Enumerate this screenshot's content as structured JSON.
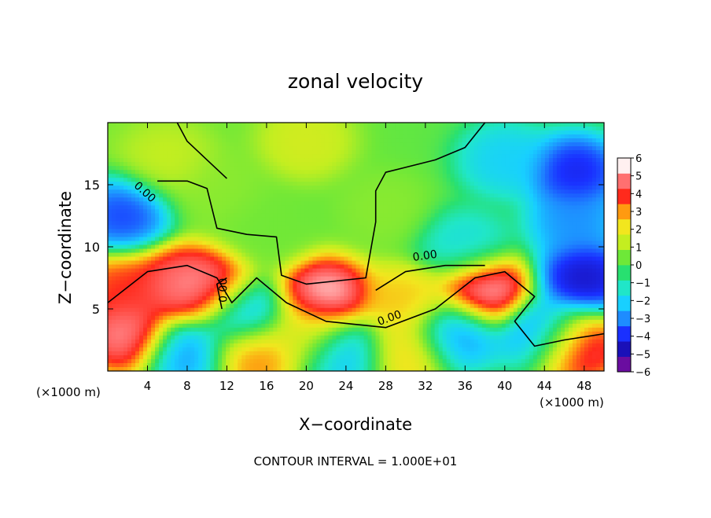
{
  "chart_data": {
    "type": "heatmap",
    "title": "zonal velocity",
    "xlabel": "X−coordinate",
    "ylabel": "Z−coordinate",
    "x_unit_label_left": "(×1000 m)",
    "x_unit_label_right": "(×1000 m)",
    "xlim": [
      0,
      50
    ],
    "ylim": [
      0,
      20
    ],
    "x_ticks": [
      4,
      8,
      12,
      16,
      20,
      24,
      28,
      32,
      36,
      40,
      44,
      48
    ],
    "y_ticks": [
      5,
      10,
      15
    ],
    "colorbar": {
      "range": [
        -6,
        6
      ],
      "ticks": [
        6,
        5,
        4,
        3,
        2,
        1,
        0,
        -1,
        -2,
        -3,
        -4,
        -5,
        -6
      ],
      "colors": [
        "#6a0da0",
        "#1a10b8",
        "#1a30ff",
        "#1e8cff",
        "#18d0ff",
        "#20e6c8",
        "#28e070",
        "#6ee838",
        "#c4ee20",
        "#f2e61e",
        "#ff9a10",
        "#ff2a1c",
        "#ff7070",
        "#fff0f0"
      ]
    },
    "contour_label": "0.00",
    "footer": "CONTOUR INTERVAL = 1.000E+01",
    "features": [
      {
        "x": 6,
        "z": 17,
        "u": 1.5
      },
      {
        "x": 20,
        "z": 18.5,
        "u": 1.8
      },
      {
        "x": 11,
        "z": 14.5,
        "u": 0.8
      },
      {
        "x": 16,
        "z": 11.5,
        "u": 0.5
      },
      {
        "x": 28,
        "z": 13,
        "u": 0.8
      },
      {
        "x": 40,
        "z": 17,
        "u": -2.5
      },
      {
        "x": 47,
        "z": 12,
        "u": -3.5
      },
      {
        "x": 1.5,
        "z": 12.5,
        "u": -4.5
      },
      {
        "x": 1.5,
        "z": 6.5,
        "u": 4.5
      },
      {
        "x": 7,
        "z": 7,
        "u": 5.5
      },
      {
        "x": 10,
        "z": 6.5,
        "u": 6
      },
      {
        "x": 13.5,
        "z": 4.5,
        "u": -3.5
      },
      {
        "x": 22,
        "z": 6,
        "u": 6.5
      },
      {
        "x": 20,
        "z": 3,
        "u": 2
      },
      {
        "x": 30,
        "z": 5.5,
        "u": 3
      },
      {
        "x": 38,
        "z": 6.5,
        "u": 6.5
      },
      {
        "x": 35,
        "z": 3,
        "u": -3.5
      },
      {
        "x": 44,
        "z": 3,
        "u": -4
      },
      {
        "x": 48,
        "z": 7.5,
        "u": -5.5
      },
      {
        "x": 2,
        "z": 3,
        "u": 6
      },
      {
        "x": 14.5,
        "z": 1.5,
        "u": 4
      },
      {
        "x": 30,
        "z": 1.5,
        "u": 3
      },
      {
        "x": 8,
        "z": 1.5,
        "u": -3.5
      },
      {
        "x": 24,
        "z": 1.5,
        "u": -3
      },
      {
        "x": 47,
        "z": 2,
        "u": 6
      },
      {
        "x": 36,
        "z": 10,
        "u": -2
      },
      {
        "x": 47,
        "z": 16,
        "u": -5
      }
    ],
    "zero_contour": [
      [
        [
          5,
          15.3
        ],
        [
          8,
          15.3
        ],
        [
          10,
          14.7
        ],
        [
          11,
          11.5
        ],
        [
          14,
          11
        ],
        [
          17,
          10.8
        ],
        [
          17.5,
          7.7
        ],
        [
          20,
          7
        ],
        [
          26,
          7.5
        ],
        [
          27,
          12
        ],
        [
          27,
          14.5
        ],
        [
          28,
          16
        ],
        [
          33,
          17
        ],
        [
          36,
          18
        ],
        [
          38,
          20
        ]
      ],
      [
        [
          7,
          20
        ],
        [
          8,
          18.5
        ],
        [
          10,
          17
        ],
        [
          12,
          15.5
        ]
      ],
      [
        [
          0,
          5.5
        ],
        [
          4,
          8
        ],
        [
          8,
          8.5
        ],
        [
          11,
          7.5
        ],
        [
          12.5,
          5.5
        ],
        [
          15,
          7.5
        ],
        [
          18,
          5.5
        ],
        [
          22,
          4
        ],
        [
          28,
          3.5
        ],
        [
          33,
          5
        ],
        [
          37,
          7.5
        ],
        [
          40,
          8
        ],
        [
          43,
          6
        ],
        [
          41,
          4
        ],
        [
          43,
          2
        ],
        [
          46,
          2.5
        ],
        [
          50,
          3
        ]
      ],
      [
        [
          11.5,
          5
        ],
        [
          11,
          7
        ],
        [
          12,
          7.5
        ]
      ],
      [
        [
          27,
          6.5
        ],
        [
          30,
          8
        ],
        [
          34,
          8.5
        ],
        [
          38,
          8.5
        ]
      ]
    ]
  }
}
